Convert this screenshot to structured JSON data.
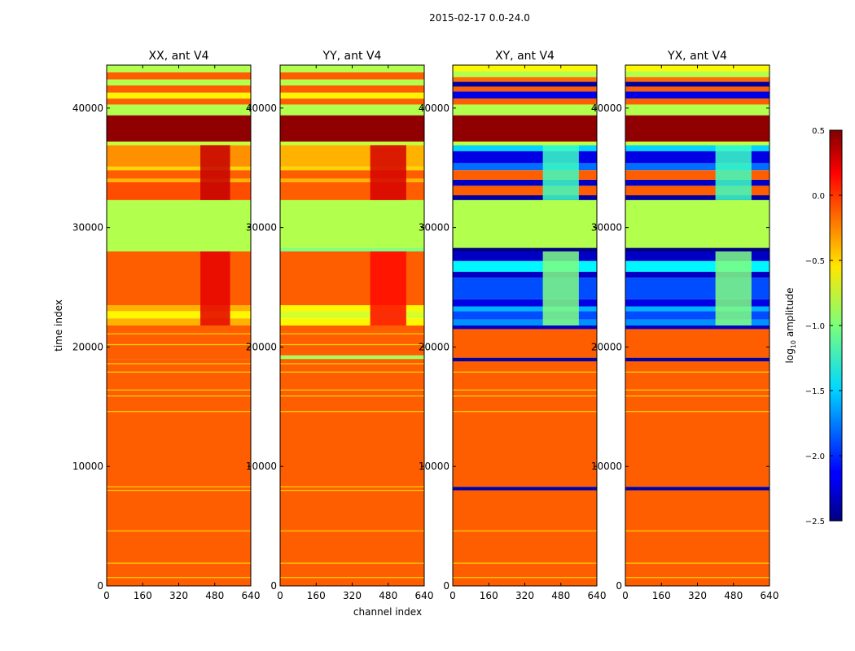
{
  "figure": {
    "suptitle": "2015-02-17 0.0-24.0",
    "xlabel": "channel index",
    "ylabel": "time index"
  },
  "colorbar": {
    "label": "log",
    "label_sub": "10",
    "label_suffix": " amplitude",
    "range": [
      -2.5,
      0.5
    ],
    "ticks": [
      0.5,
      0.0,
      -0.5,
      -1.0,
      -1.5,
      -2.0,
      -2.5
    ],
    "tick_labels": [
      "0.5",
      "0.0",
      "−0.5",
      "−1.0",
      "−1.5",
      "−2.0",
      "−2.5"
    ],
    "colormap": "jet"
  },
  "chart_data": [
    {
      "type": "heatmap",
      "title": "XX, ant V4",
      "xlim": [
        0,
        640
      ],
      "ylim": [
        0,
        43600
      ],
      "xticks": [
        0,
        160,
        320,
        480,
        640
      ],
      "yticks": [
        0,
        10000,
        20000,
        30000,
        40000
      ],
      "z_range": [
        -2.5,
        0.5
      ],
      "bands": [
        [
          0,
          19000,
          -0.15
        ],
        [
          19000,
          21800,
          -0.15
        ],
        [
          21800,
          22400,
          -0.4
        ],
        [
          22400,
          23000,
          -0.6
        ],
        [
          23000,
          23500,
          -0.4
        ],
        [
          23500,
          28000,
          -0.15
        ],
        [
          28000,
          32300,
          -0.85
        ],
        [
          32300,
          33800,
          -0.1
        ],
        [
          33800,
          34100,
          -0.4
        ],
        [
          34100,
          34800,
          -0.15
        ],
        [
          34800,
          35100,
          -0.5
        ],
        [
          35100,
          36900,
          -0.3
        ],
        [
          36900,
          37200,
          -0.8
        ],
        [
          37200,
          39400,
          0.45
        ],
        [
          39400,
          40300,
          -0.85
        ],
        [
          40300,
          40800,
          -0.15
        ],
        [
          40800,
          41300,
          -0.6
        ],
        [
          41300,
          41900,
          -0.15
        ],
        [
          41900,
          42400,
          -0.85
        ],
        [
          42400,
          43000,
          -0.15
        ],
        [
          43000,
          43600,
          -0.85
        ]
      ],
      "lines": [
        [
          700,
          -0.5
        ],
        [
          1900,
          -0.5
        ],
        [
          4600,
          -0.5
        ],
        [
          8000,
          -0.5
        ],
        [
          8300,
          -0.5
        ],
        [
          14600,
          -0.5
        ],
        [
          15900,
          -0.5
        ],
        [
          16400,
          -0.5
        ],
        [
          17900,
          -0.5
        ],
        [
          18600,
          -0.5
        ],
        [
          20200,
          -0.5
        ],
        [
          21100,
          -0.5
        ]
      ],
      "patches": [
        {
          "x": [
            416,
            548
          ],
          "y": [
            21800,
            28000
          ],
          "z": 0.2
        },
        {
          "x": [
            416,
            548
          ],
          "y": [
            32300,
            36900
          ],
          "z": 0.3
        }
      ]
    },
    {
      "type": "heatmap",
      "title": "YY, ant V4",
      "xlim": [
        0,
        640
      ],
      "ylim": [
        0,
        43600
      ],
      "xticks": [
        0,
        160,
        320,
        480,
        640
      ],
      "yticks": [
        0,
        10000,
        20000,
        30000,
        40000
      ],
      "z_range": [
        -2.5,
        0.5
      ],
      "bands": [
        [
          0,
          19000,
          -0.15
        ],
        [
          19000,
          19300,
          -0.9
        ],
        [
          19300,
          21800,
          -0.15
        ],
        [
          21800,
          22400,
          -0.6
        ],
        [
          22400,
          23000,
          -0.75
        ],
        [
          23000,
          23500,
          -0.6
        ],
        [
          23500,
          28000,
          -0.15
        ],
        [
          28000,
          28300,
          -1.0
        ],
        [
          28300,
          32300,
          -0.85
        ],
        [
          32300,
          33800,
          -0.15
        ],
        [
          33800,
          34100,
          -0.4
        ],
        [
          34100,
          34800,
          -0.15
        ],
        [
          34800,
          35100,
          -0.5
        ],
        [
          35100,
          36900,
          -0.4
        ],
        [
          36900,
          37200,
          -0.8
        ],
        [
          37200,
          39400,
          0.45
        ],
        [
          39400,
          40300,
          -0.85
        ],
        [
          40300,
          40800,
          -0.15
        ],
        [
          40800,
          41300,
          -0.6
        ],
        [
          41300,
          41900,
          -0.15
        ],
        [
          41900,
          42400,
          -0.85
        ],
        [
          42400,
          43000,
          -0.15
        ],
        [
          43000,
          43600,
          -0.85
        ]
      ],
      "lines": [
        [
          700,
          -0.5
        ],
        [
          1900,
          -0.5
        ],
        [
          4600,
          -0.5
        ],
        [
          8000,
          -0.5
        ],
        [
          8300,
          -0.5
        ],
        [
          14600,
          -0.5
        ],
        [
          15900,
          -0.5
        ],
        [
          16400,
          -0.5
        ],
        [
          17900,
          -0.5
        ],
        [
          18600,
          -0.5
        ],
        [
          20200,
          -0.5
        ],
        [
          21100,
          -0.5
        ]
      ],
      "patches": [
        {
          "x": [
            400,
            560
          ],
          "y": [
            21800,
            28000
          ],
          "z": 0.1
        },
        {
          "x": [
            400,
            560
          ],
          "y": [
            32300,
            36900
          ],
          "z": 0.25
        }
      ]
    },
    {
      "type": "heatmap",
      "title": "XY, ant V4",
      "xlim": [
        0,
        640
      ],
      "ylim": [
        0,
        43600
      ],
      "xticks": [
        0,
        160,
        320,
        480,
        640
      ],
      "yticks": [
        0,
        10000,
        20000,
        30000,
        40000
      ],
      "z_range": [
        -2.5,
        0.5
      ],
      "bands": [
        [
          0,
          8000,
          -0.15
        ],
        [
          8000,
          8300,
          -2.4
        ],
        [
          8300,
          18800,
          -0.15
        ],
        [
          18800,
          19100,
          -2.4
        ],
        [
          19100,
          21500,
          -0.15
        ],
        [
          21500,
          21800,
          -2.3
        ],
        [
          21800,
          22300,
          -1.7
        ],
        [
          22300,
          23000,
          -1.9
        ],
        [
          23000,
          23400,
          -1.6
        ],
        [
          23400,
          24000,
          -2.2
        ],
        [
          24000,
          25800,
          -1.9
        ],
        [
          25800,
          26300,
          -2.3
        ],
        [
          26300,
          27200,
          -1.4
        ],
        [
          27200,
          28000,
          -2.3
        ],
        [
          28000,
          28300,
          -2.5
        ],
        [
          28300,
          32300,
          -0.85
        ],
        [
          32300,
          32700,
          -2.4
        ],
        [
          32700,
          33500,
          -0.15
        ],
        [
          33500,
          34000,
          -2.3
        ],
        [
          34000,
          34800,
          -0.15
        ],
        [
          34800,
          35400,
          -1.8
        ],
        [
          35400,
          36400,
          -2.2
        ],
        [
          36400,
          36900,
          -1.5
        ],
        [
          36900,
          37200,
          -0.8
        ],
        [
          37200,
          39400,
          0.45
        ],
        [
          39400,
          40300,
          -0.85
        ],
        [
          40300,
          40800,
          -0.15
        ],
        [
          40800,
          41400,
          -2.2
        ],
        [
          41400,
          41800,
          -0.15
        ],
        [
          41800,
          42200,
          -2.4
        ],
        [
          42200,
          42600,
          -0.2
        ],
        [
          42600,
          43100,
          -0.85
        ],
        [
          43100,
          43600,
          -0.6
        ]
      ],
      "lines": [
        [
          700,
          -0.5
        ],
        [
          1900,
          -0.5
        ],
        [
          4600,
          -0.5
        ],
        [
          14600,
          -0.5
        ],
        [
          15900,
          -0.5
        ],
        [
          16400,
          -0.5
        ],
        [
          17900,
          -0.5
        ]
      ],
      "patches": [
        {
          "x": [
            400,
            560
          ],
          "y": [
            21800,
            28000
          ],
          "z": -1.0
        },
        {
          "x": [
            400,
            560
          ],
          "y": [
            32300,
            36900
          ],
          "z": -1.2
        }
      ]
    },
    {
      "type": "heatmap",
      "title": "YX, ant V4",
      "xlim": [
        0,
        640
      ],
      "ylim": [
        0,
        43600
      ],
      "xticks": [
        0,
        160,
        320,
        480,
        640
      ],
      "yticks": [
        0,
        10000,
        20000,
        30000,
        40000
      ],
      "z_range": [
        -2.5,
        0.5
      ],
      "bands": [
        [
          0,
          8000,
          -0.15
        ],
        [
          8000,
          8300,
          -2.4
        ],
        [
          8300,
          18800,
          -0.15
        ],
        [
          18800,
          19100,
          -2.4
        ],
        [
          19100,
          21500,
          -0.15
        ],
        [
          21500,
          21800,
          -2.3
        ],
        [
          21800,
          22300,
          -1.7
        ],
        [
          22300,
          23000,
          -1.9
        ],
        [
          23000,
          23400,
          -1.6
        ],
        [
          23400,
          24000,
          -2.2
        ],
        [
          24000,
          25800,
          -1.9
        ],
        [
          25800,
          26300,
          -2.3
        ],
        [
          26300,
          27200,
          -1.4
        ],
        [
          27200,
          28000,
          -2.3
        ],
        [
          28000,
          28300,
          -2.5
        ],
        [
          28300,
          32300,
          -0.85
        ],
        [
          32300,
          32700,
          -2.4
        ],
        [
          32700,
          33500,
          -0.15
        ],
        [
          33500,
          34000,
          -2.3
        ],
        [
          34000,
          34800,
          -0.15
        ],
        [
          34800,
          35400,
          -1.8
        ],
        [
          35400,
          36400,
          -2.2
        ],
        [
          36400,
          36900,
          -1.5
        ],
        [
          36900,
          37200,
          -0.8
        ],
        [
          37200,
          39400,
          0.45
        ],
        [
          39400,
          40300,
          -0.85
        ],
        [
          40300,
          40800,
          -0.15
        ],
        [
          40800,
          41400,
          -2.2
        ],
        [
          41400,
          41800,
          -0.15
        ],
        [
          41800,
          42200,
          -2.4
        ],
        [
          42200,
          42600,
          -0.2
        ],
        [
          42600,
          43100,
          -0.85
        ],
        [
          43100,
          43600,
          -0.6
        ]
      ],
      "lines": [
        [
          700,
          -0.5
        ],
        [
          1900,
          -0.5
        ],
        [
          4600,
          -0.5
        ],
        [
          14600,
          -0.5
        ],
        [
          15900,
          -0.5
        ],
        [
          16400,
          -0.5
        ],
        [
          17900,
          -0.5
        ]
      ],
      "patches": [
        {
          "x": [
            400,
            560
          ],
          "y": [
            21800,
            28000
          ],
          "z": -1.0
        },
        {
          "x": [
            400,
            560
          ],
          "y": [
            32300,
            36900
          ],
          "z": -1.2
        }
      ]
    }
  ]
}
